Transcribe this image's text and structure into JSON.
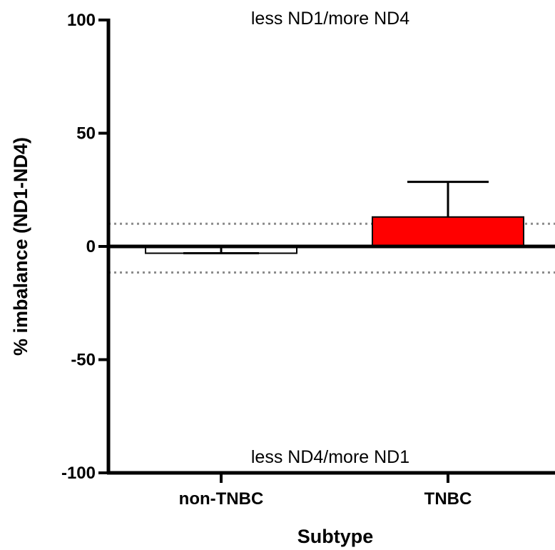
{
  "chart_data": {
    "type": "bar",
    "categories": [
      "non-TNBC",
      "TNBC"
    ],
    "values": [
      -3,
      13
    ],
    "error_upper": [
      0,
      28.5
    ],
    "error_lower": [
      -3,
      13
    ],
    "bar_colors": [
      "#ffffff",
      "#ff0000"
    ],
    "xlabel": "Subtype",
    "ylabel": "% imbalance (ND1-ND4)",
    "ylim": [
      -100,
      100
    ],
    "yticks": [
      100,
      50,
      0,
      -50,
      -100
    ],
    "reference_lines": [
      10,
      -11.5
    ],
    "annotations": {
      "top": "less ND1/more ND4",
      "bottom": "less ND4/more ND1"
    },
    "grid": false
  }
}
